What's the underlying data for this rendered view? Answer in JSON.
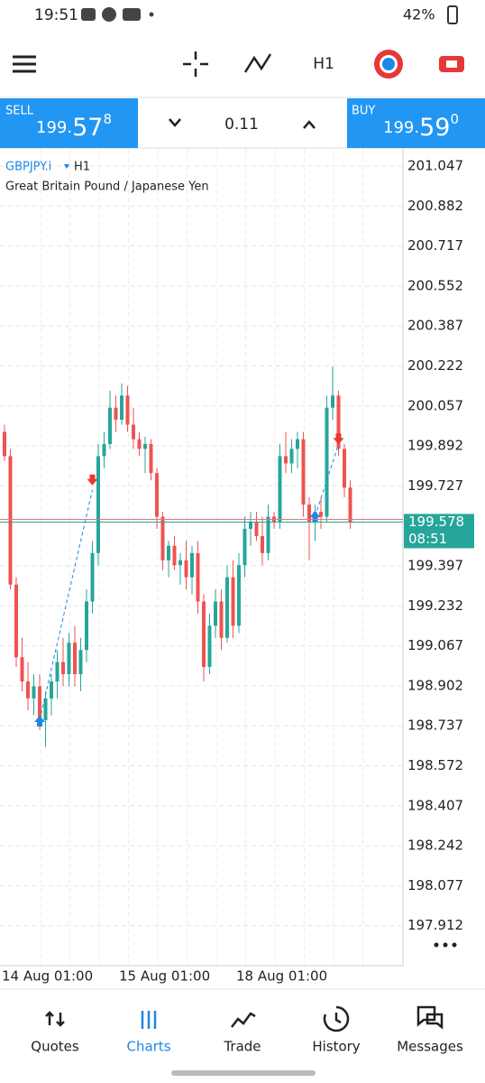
{
  "status_bar": {
    "time": "19:51",
    "battery": "42%"
  },
  "toolbar": {
    "timeframe": "H1"
  },
  "trade_panel": {
    "sell": {
      "label": "SELL",
      "price_prefix": "199.",
      "price_big": "57",
      "price_sup": "8"
    },
    "lot": "0.11",
    "buy": {
      "label": "BUY",
      "price_prefix": "199.",
      "price_big": "59",
      "price_sup": "0"
    }
  },
  "chart_data": {
    "type": "candlestick",
    "symbol": "GBPJPY.i",
    "timeframe": "H1",
    "subtitle": "Great Britain Pound / Japanese Yen",
    "up_color": "#26a69a",
    "down_color": "#ef5350",
    "categories": [
      "14 Aug 01:00",
      null,
      null,
      null,
      null,
      null,
      null,
      null,
      null,
      null,
      null,
      null,
      null,
      null,
      null,
      null,
      null,
      null,
      null,
      null,
      "15 Aug 01:00",
      null,
      null,
      null,
      null,
      null,
      null,
      null,
      null,
      null,
      null,
      null,
      null,
      null,
      null,
      null,
      null,
      null,
      null,
      null,
      "18 Aug 01:00",
      null,
      null,
      null,
      null,
      null,
      null,
      null,
      null,
      null,
      null,
      null,
      null,
      null,
      null,
      null,
      null,
      null,
      null,
      null
    ],
    "values": [
      [
        199.95,
        199.98,
        199.83,
        199.85
      ],
      [
        199.85,
        199.88,
        199.3,
        199.32
      ],
      [
        199.32,
        199.35,
        198.98,
        199.02
      ],
      [
        199.02,
        199.1,
        198.88,
        198.92
      ],
      [
        198.92,
        199.0,
        198.8,
        198.85
      ],
      [
        198.85,
        198.95,
        198.78,
        198.9
      ],
      [
        198.9,
        198.95,
        198.72,
        198.76
      ],
      [
        198.76,
        198.88,
        198.65,
        198.85
      ],
      [
        198.85,
        198.95,
        198.78,
        198.92
      ],
      [
        198.92,
        199.05,
        198.85,
        199.0
      ],
      [
        199.0,
        199.1,
        198.9,
        198.95
      ],
      [
        198.95,
        199.12,
        198.9,
        199.08
      ],
      [
        199.08,
        199.15,
        198.9,
        198.95
      ],
      [
        198.95,
        199.1,
        198.88,
        199.05
      ],
      [
        199.05,
        199.3,
        199.0,
        199.25
      ],
      [
        199.25,
        199.5,
        199.2,
        199.45
      ],
      [
        199.45,
        199.9,
        199.4,
        199.85
      ],
      [
        199.85,
        199.95,
        199.8,
        199.9
      ],
      [
        199.9,
        200.12,
        199.88,
        200.05
      ],
      [
        200.05,
        200.1,
        199.95,
        200.0
      ],
      [
        200.0,
        200.15,
        199.98,
        200.1
      ],
      [
        200.1,
        200.14,
        199.95,
        199.98
      ],
      [
        199.98,
        200.05,
        199.88,
        199.92
      ],
      [
        199.92,
        199.95,
        199.85,
        199.88
      ],
      [
        199.88,
        199.93,
        199.78,
        199.9
      ],
      [
        199.9,
        199.92,
        199.75,
        199.78
      ],
      [
        199.78,
        199.8,
        199.55,
        199.6
      ],
      [
        199.6,
        199.62,
        199.38,
        199.42
      ],
      [
        199.42,
        199.5,
        199.35,
        199.48
      ],
      [
        199.48,
        199.52,
        199.38,
        199.4
      ],
      [
        199.4,
        199.45,
        199.32,
        199.42
      ],
      [
        199.42,
        199.5,
        199.3,
        199.35
      ],
      [
        199.35,
        199.48,
        199.28,
        199.45
      ],
      [
        199.45,
        199.5,
        199.2,
        199.25
      ],
      [
        199.25,
        199.28,
        198.92,
        198.98
      ],
      [
        198.98,
        199.2,
        198.95,
        199.15
      ],
      [
        199.15,
        199.3,
        199.1,
        199.25
      ],
      [
        199.25,
        199.3,
        199.05,
        199.1
      ],
      [
        199.1,
        199.4,
        199.08,
        199.35
      ],
      [
        199.35,
        199.42,
        199.1,
        199.15
      ],
      [
        199.15,
        199.45,
        199.12,
        199.4
      ],
      [
        199.4,
        199.6,
        199.35,
        199.55
      ],
      [
        199.55,
        199.62,
        199.48,
        199.58
      ],
      [
        199.58,
        199.62,
        199.5,
        199.52
      ],
      [
        199.52,
        199.6,
        199.4,
        199.45
      ],
      [
        199.45,
        199.65,
        199.42,
        199.6
      ],
      [
        199.6,
        199.62,
        199.55,
        199.58
      ],
      [
        199.58,
        199.9,
        199.55,
        199.85
      ],
      [
        199.85,
        199.95,
        199.78,
        199.82
      ],
      [
        199.82,
        199.92,
        199.78,
        199.88
      ],
      [
        199.88,
        199.95,
        199.8,
        199.92
      ],
      [
        199.92,
        199.95,
        199.6,
        199.65
      ],
      [
        199.65,
        199.68,
        199.42,
        199.58
      ],
      [
        199.58,
        199.65,
        199.5,
        199.62
      ],
      [
        199.62,
        199.68,
        199.55,
        199.6
      ],
      [
        199.6,
        200.1,
        199.58,
        200.05
      ],
      [
        200.05,
        200.22,
        200.0,
        200.1
      ],
      [
        200.1,
        200.12,
        199.85,
        199.88
      ],
      [
        199.88,
        199.9,
        199.68,
        199.72
      ],
      [
        199.72,
        199.75,
        199.55,
        199.578
      ]
    ],
    "ylim": [
      197.747,
      201.118
    ],
    "yticks": [
      197.912,
      198.077,
      198.242,
      198.407,
      198.572,
      198.737,
      198.902,
      199.067,
      199.232,
      199.397,
      199.578,
      199.727,
      199.892,
      200.057,
      200.222,
      200.387,
      200.552,
      200.717,
      200.882,
      201.047
    ],
    "current_price": 199.578,
    "bar_timer": "08:51",
    "grid": true
  },
  "nav": [
    "Quotes",
    "Charts",
    "Trade",
    "History",
    "Messages"
  ]
}
